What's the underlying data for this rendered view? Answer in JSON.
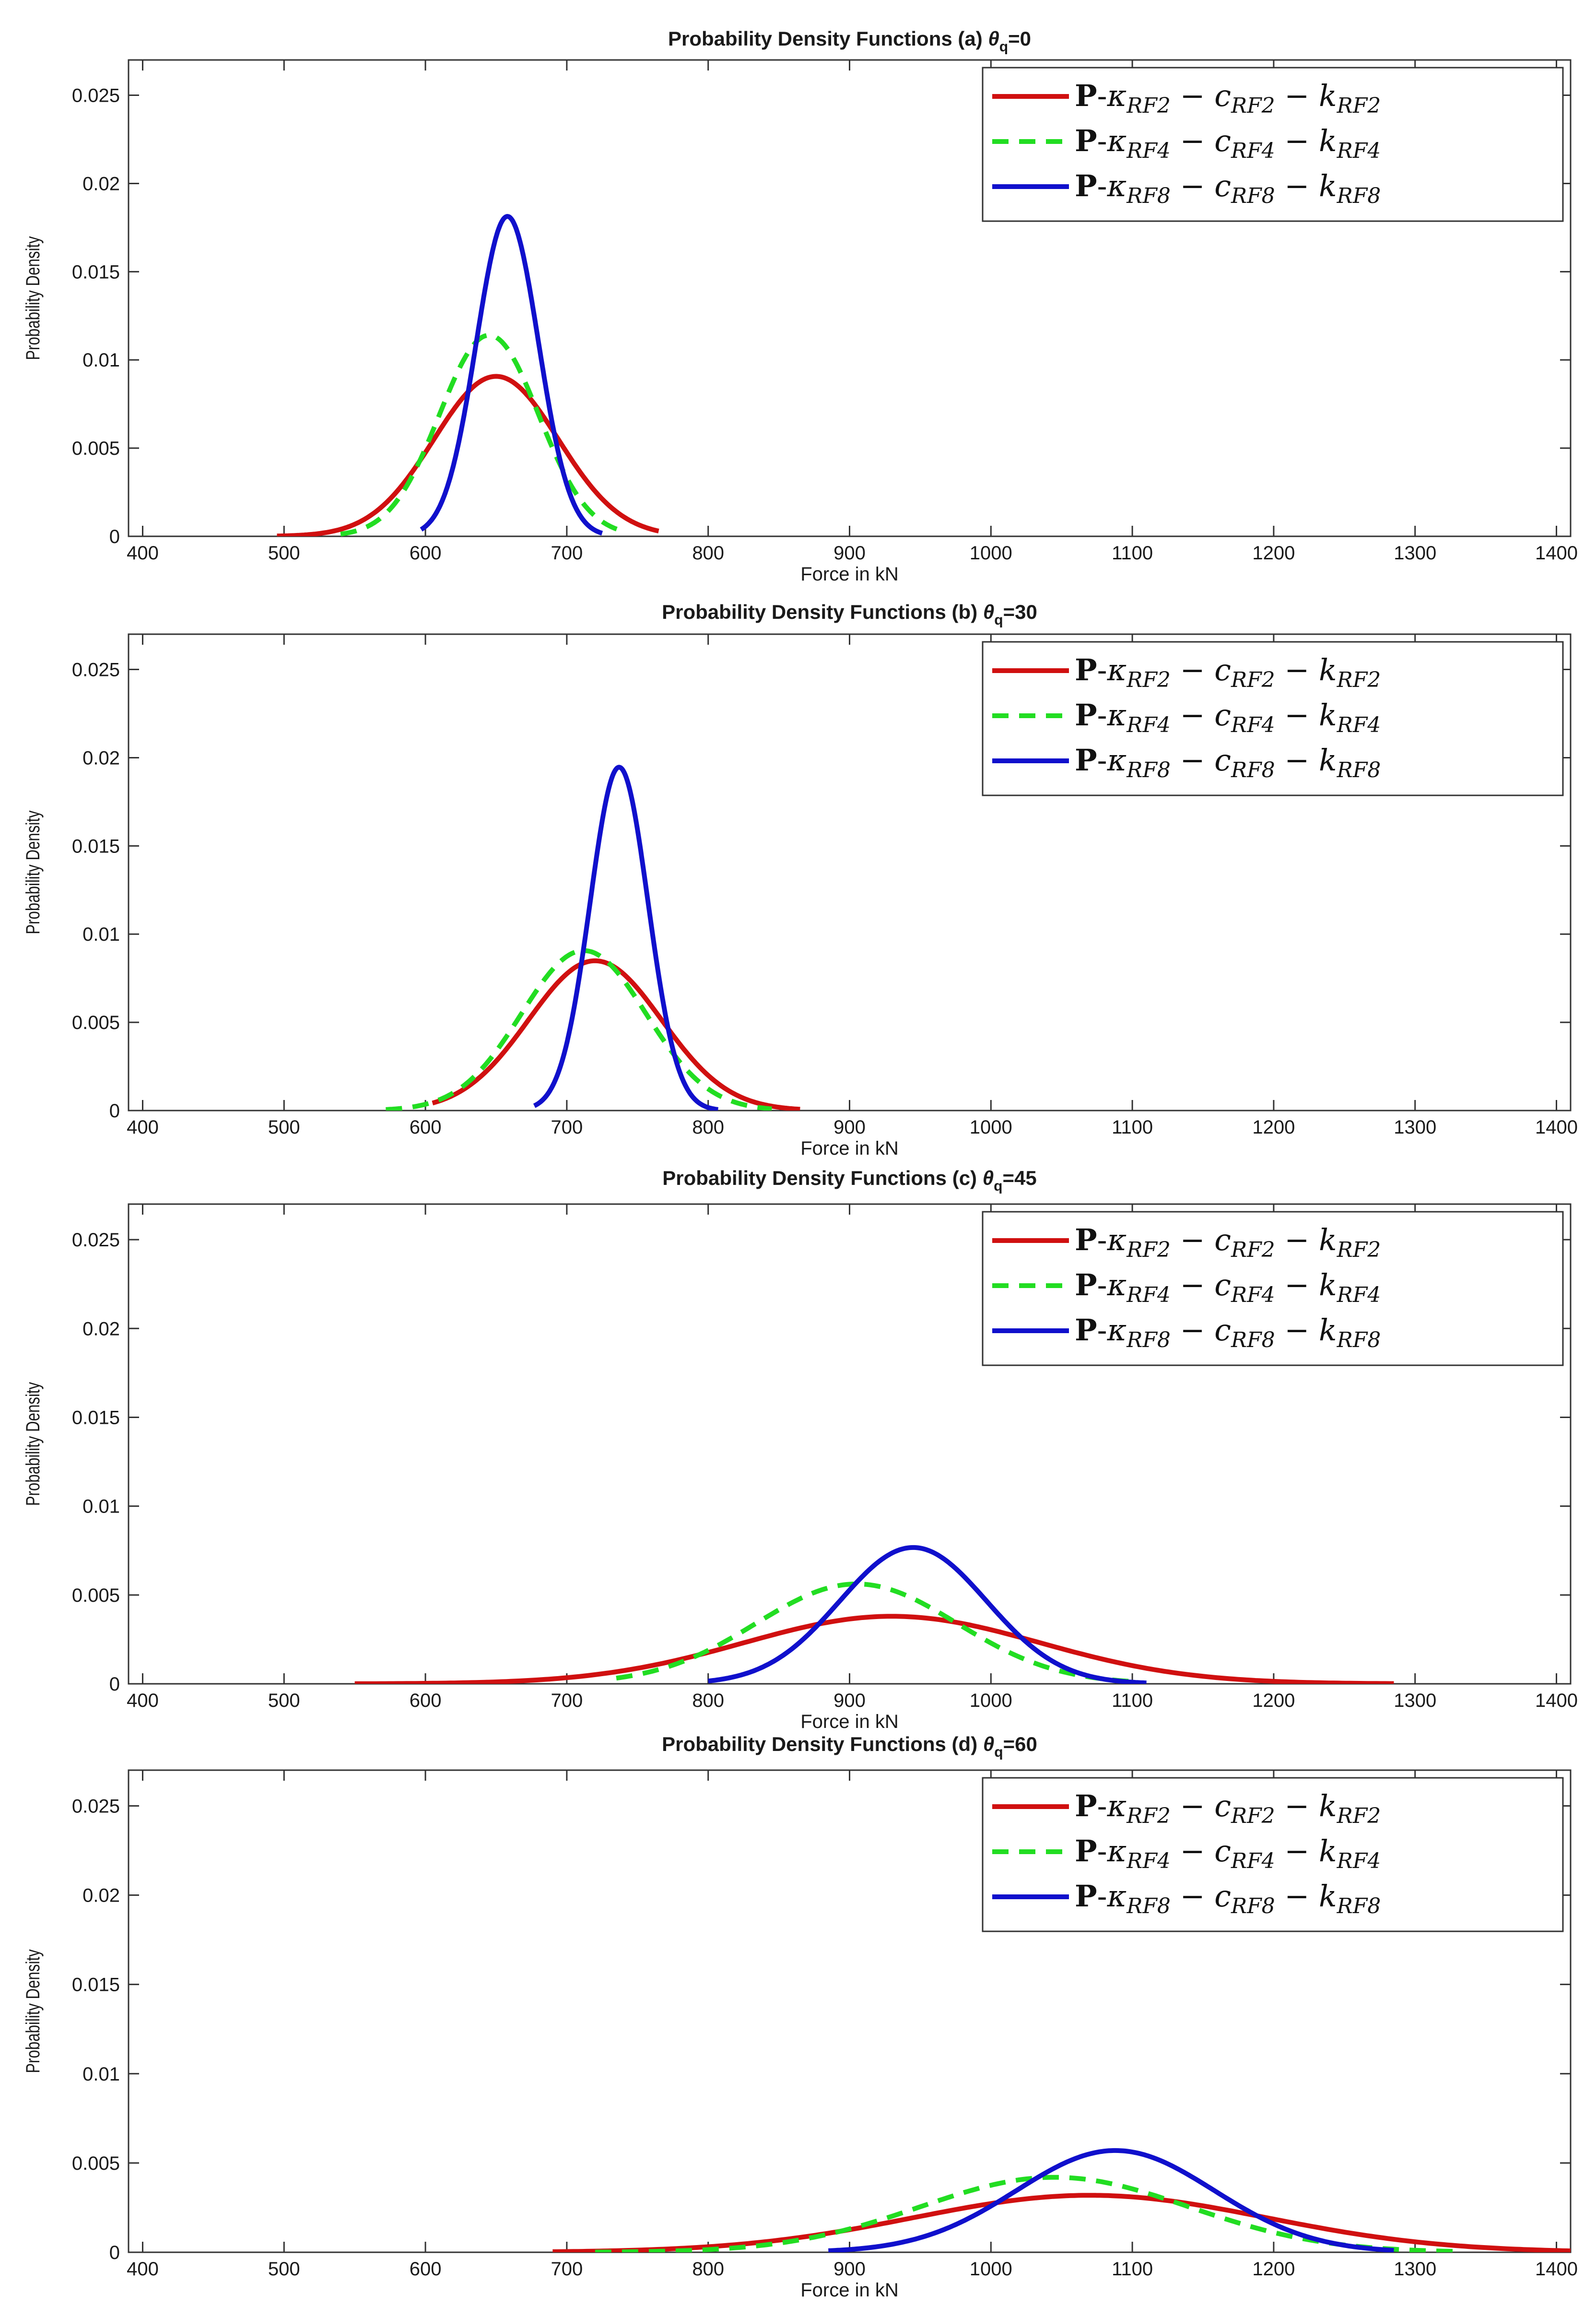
{
  "figure_title_prefix": "Probability Density Functions",
  "colors": {
    "red": "#d01010",
    "green": "#22dd22",
    "blue": "#1010cc",
    "axis": "#333333"
  },
  "chart_data": [
    {
      "type": "line",
      "panel_label": "(a)",
      "title": "Probability Density Functions (a) θq=0",
      "title_main": "Probability Density Functions (a) ",
      "theta_symbol": "θ",
      "theta_sub": "q",
      "theta_value": "=0",
      "xlabel": "Force in kN",
      "ylabel": "Probability Density",
      "xlim": [
        390,
        1410
      ],
      "ylim": [
        0,
        0.027
      ],
      "xticks": [
        400,
        500,
        600,
        700,
        800,
        900,
        1000,
        1100,
        1200,
        1300,
        1400
      ],
      "yticks": [
        0,
        0.005,
        0.01,
        0.015,
        0.02,
        0.025
      ],
      "ytick_labels": [
        "0",
        "0.005",
        "0.01",
        "0.015",
        "0.02",
        "0.025"
      ],
      "legend_position": "top-right",
      "series": [
        {
          "name": "P-κRF2 − cRF2 − kRF2",
          "rf": "2",
          "color": "#d01010",
          "style": "solid",
          "mean": 650,
          "sd": 44,
          "range": [
            495,
            765
          ]
        },
        {
          "name": "P-κRF4 − cRF4 − kRF4",
          "rf": "4",
          "color": "#22dd22",
          "style": "dashed",
          "mean": 645,
          "sd": 35,
          "range": [
            540,
            740
          ]
        },
        {
          "name": "P-κRF8 − cRF8 − kRF8",
          "rf": "8",
          "color": "#1010cc",
          "style": "solid",
          "mean": 658,
          "sd": 22,
          "range": [
            597,
            725
          ]
        }
      ]
    },
    {
      "type": "line",
      "panel_label": "(b)",
      "title": "Probability Density Functions (b) θq=30",
      "title_main": "Probability Density Functions (b) ",
      "theta_symbol": "θ",
      "theta_sub": "q",
      "theta_value": "=30",
      "xlabel": "Force in kN",
      "ylabel": "Probability Density",
      "xlim": [
        390,
        1410
      ],
      "ylim": [
        0,
        0.027
      ],
      "xticks": [
        400,
        500,
        600,
        700,
        800,
        900,
        1000,
        1100,
        1200,
        1300,
        1400
      ],
      "yticks": [
        0,
        0.005,
        0.01,
        0.015,
        0.02,
        0.025
      ],
      "ytick_labels": [
        "0",
        "0.005",
        "0.01",
        "0.015",
        "0.02",
        "0.025"
      ],
      "legend_position": "top-right",
      "series": [
        {
          "name": "P-κRF2 − cRF2 − kRF2",
          "rf": "2",
          "color": "#d01010",
          "style": "solid",
          "mean": 720,
          "sd": 47,
          "range": [
            605,
            865
          ]
        },
        {
          "name": "P-κRF4 − cRF4 − kRF4",
          "rf": "4",
          "color": "#22dd22",
          "style": "dashed",
          "mean": 712,
          "sd": 44,
          "range": [
            572,
            845
          ]
        },
        {
          "name": "P-κRF8 − cRF8 − kRF8",
          "rf": "8",
          "color": "#1010cc",
          "style": "solid",
          "mean": 737,
          "sd": 20.5,
          "range": [
            677,
            807
          ]
        }
      ]
    },
    {
      "type": "line",
      "panel_label": "(c)",
      "title": "Probability Density Functions (c) θq=45",
      "title_main": "Probability Density Functions (c) ",
      "theta_symbol": "θ",
      "theta_sub": "q",
      "theta_value": "=45",
      "xlabel": "Force in kN",
      "ylabel": "Probability Density",
      "xlim": [
        390,
        1410
      ],
      "ylim": [
        0,
        0.027
      ],
      "xticks": [
        400,
        500,
        600,
        700,
        800,
        900,
        1000,
        1100,
        1200,
        1300,
        1400
      ],
      "yticks": [
        0,
        0.005,
        0.01,
        0.015,
        0.02,
        0.025
      ],
      "ytick_labels": [
        "0",
        "0.005",
        "0.01",
        "0.015",
        "0.02",
        "0.025"
      ],
      "legend_position": "top-right",
      "series": [
        {
          "name": "P-κRF2 − cRF2 − kRF2",
          "rf": "2",
          "color": "#d01010",
          "style": "solid",
          "mean": 930,
          "sd": 105,
          "range": [
            550,
            1285
          ]
        },
        {
          "name": "P-κRF4 − cRF4 − kRF4",
          "rf": "4",
          "color": "#22dd22",
          "style": "dashed",
          "mean": 905,
          "sd": 71,
          "range": [
            735,
            1100
          ]
        },
        {
          "name": "P-κRF8 − cRF8 − kRF8",
          "rf": "8",
          "color": "#1010cc",
          "style": "solid",
          "mean": 945,
          "sd": 52,
          "range": [
            800,
            1110
          ]
        }
      ]
    },
    {
      "type": "line",
      "panel_label": "(d)",
      "title": "Probability Density Functions (d) θq=60",
      "title_main": "Probability Density Functions (d) ",
      "theta_symbol": "θ",
      "theta_sub": "q",
      "theta_value": "=60",
      "xlabel": "Force in kN",
      "ylabel": "Probability Density",
      "xlim": [
        390,
        1410
      ],
      "ylim": [
        0,
        0.027
      ],
      "xticks": [
        400,
        500,
        600,
        700,
        800,
        900,
        1000,
        1100,
        1200,
        1300,
        1400
      ],
      "yticks": [
        0,
        0.005,
        0.01,
        0.015,
        0.02,
        0.025
      ],
      "ytick_labels": [
        "0",
        "0.005",
        "0.01",
        "0.015",
        "0.02",
        "0.025"
      ],
      "legend_position": "top-right",
      "series": [
        {
          "name": "P-κRF2 − cRF2 − kRF2",
          "rf": "2",
          "color": "#d01010",
          "style": "solid",
          "mean": 1070,
          "sd": 125,
          "range": [
            690,
            1410
          ]
        },
        {
          "name": "P-κRF4 − cRF4 − kRF4",
          "rf": "4",
          "color": "#22dd22",
          "style": "dashed",
          "mean": 1045,
          "sd": 95,
          "range": [
            720,
            1330
          ]
        },
        {
          "name": "P-κRF8 − cRF8 − kRF8",
          "rf": "8",
          "color": "#1010cc",
          "style": "solid",
          "mean": 1088,
          "sd": 70,
          "range": [
            885,
            1285
          ]
        }
      ]
    }
  ]
}
